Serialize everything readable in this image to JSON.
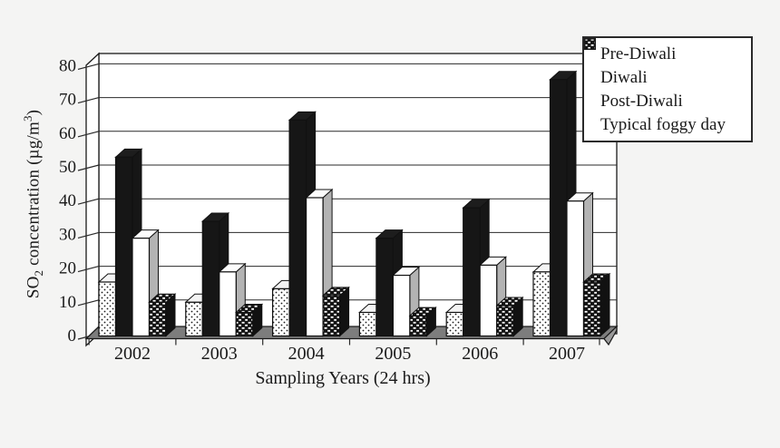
{
  "page": {
    "background": "#f4f4f3"
  },
  "chart_data": {
    "type": "bar",
    "style": "3d-grouped-bars",
    "title": "",
    "xlabel": "Sampling Years (24 hrs)",
    "ylabel": "SO2 concentration (µg/m3)",
    "ylabel_parts": {
      "base": "SO",
      "sub": "2",
      "mid": " concentration (µg/m",
      "sup": "3",
      "end": ")"
    },
    "categories": [
      "2002",
      "2003",
      "2004",
      "2005",
      "2006",
      "2007"
    ],
    "series": [
      {
        "name": "Pre-Diwali",
        "pattern": "dots",
        "values": [
          16,
          10,
          14,
          7,
          7,
          19
        ]
      },
      {
        "name": "Diwali",
        "pattern": "solid-black",
        "values": [
          53,
          34,
          64,
          29,
          38,
          76
        ]
      },
      {
        "name": "Post-Diwali",
        "pattern": "white",
        "values": [
          29,
          19,
          41,
          18,
          21,
          40
        ]
      },
      {
        "name": "Typical foggy day",
        "pattern": "dark-dashes",
        "values": [
          10,
          7,
          12,
          6,
          9,
          16
        ]
      }
    ],
    "y_axis": {
      "min": 0,
      "max": 80,
      "step": 10,
      "ticks": [
        0,
        10,
        20,
        30,
        40,
        50,
        60,
        70,
        80
      ]
    },
    "grid": true,
    "legend_position": "top-right"
  },
  "colors": {
    "bar_black": "#161616",
    "text": "#1a1a1a",
    "wall_fill": "#ffffff",
    "wall_stroke": "#1a1a1a",
    "gridline": "#2a2a2a",
    "floor_fill": "#7d7d7d",
    "floor_lip": "#9a9a9a",
    "side_dots": "#9a9a9a",
    "side_white": "#b3b3b3",
    "side_dark": "#111111",
    "top_white": "#fdfdfd"
  }
}
